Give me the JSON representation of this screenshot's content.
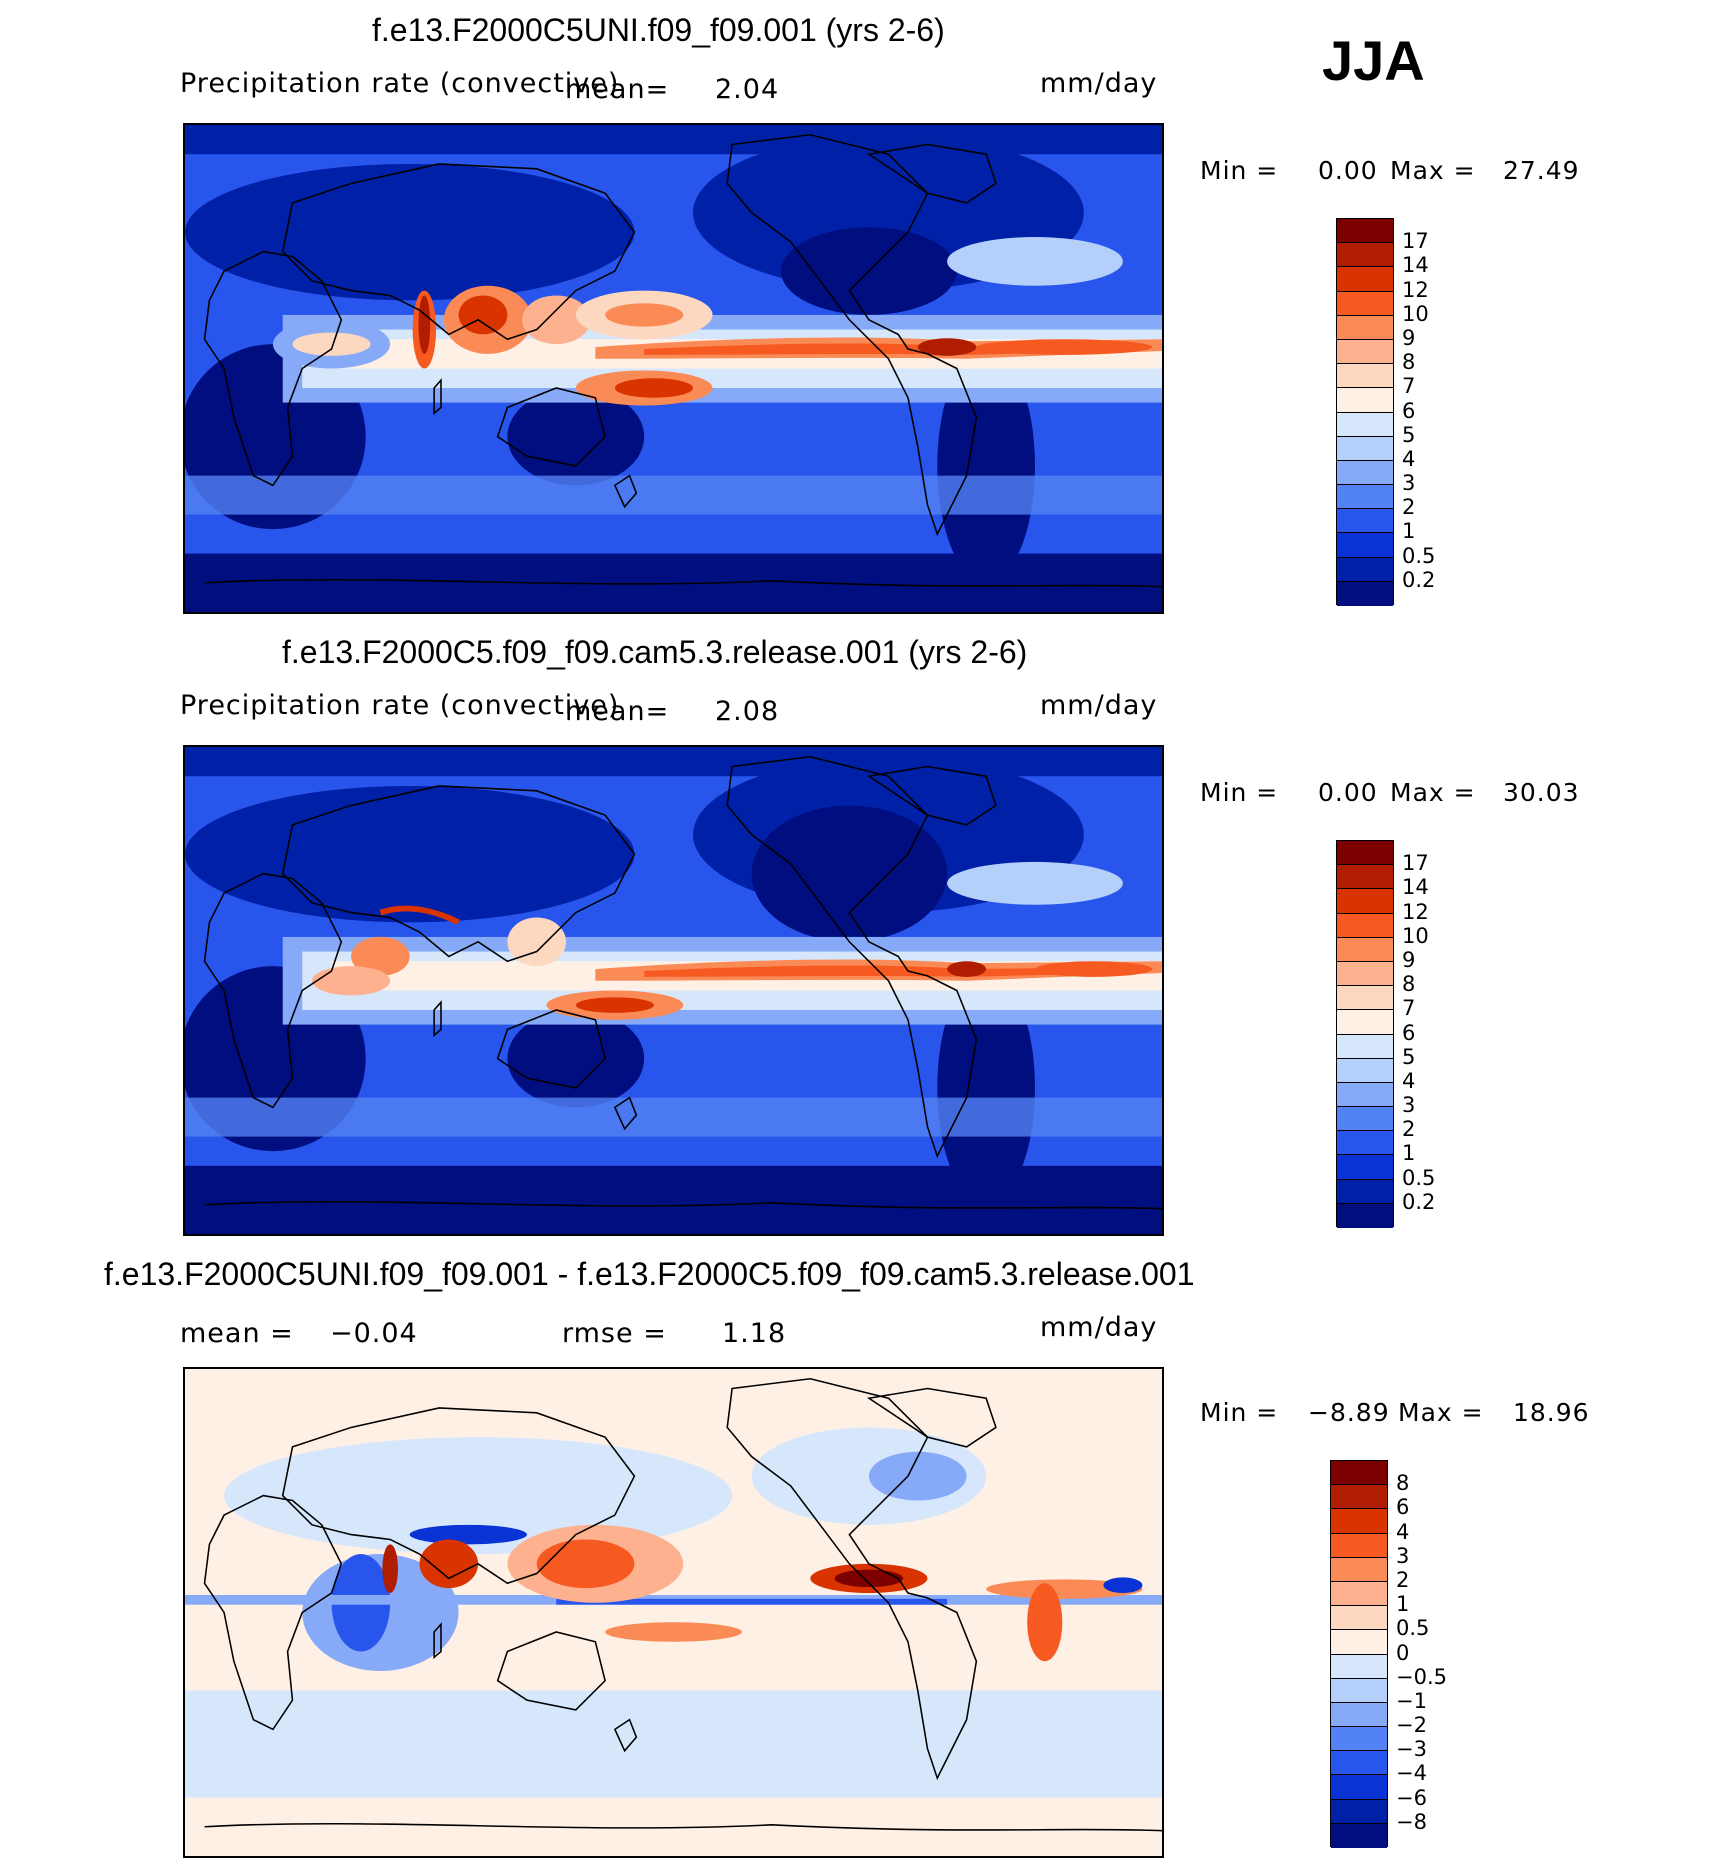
{
  "season": "JJA",
  "panels": [
    {
      "title": "f.e13.F2000C5UNI.f09_f09.001 (yrs 2-6)",
      "variable": "Precipitation rate (convective)",
      "mean_label": "mean=",
      "mean_value": "2.04",
      "units": "mm/day",
      "min_label": "Min =",
      "min_value": "0.00",
      "max_label": "Max =",
      "max_value": "27.49",
      "levels": [
        "17",
        "14",
        "12",
        "10",
        "9",
        "8",
        "7",
        "6",
        "5",
        "4",
        "3",
        "2",
        "1",
        "0.5",
        "0.2"
      ]
    },
    {
      "title": "f.e13.F2000C5.f09_f09.cam5.3.release.001 (yrs 2-6)",
      "variable": "Precipitation rate (convective)",
      "mean_label": "mean=",
      "mean_value": "2.08",
      "units": "mm/day",
      "min_label": "Min =",
      "min_value": "0.00",
      "max_label": "Max =",
      "max_value": "30.03",
      "levels": [
        "17",
        "14",
        "12",
        "10",
        "9",
        "8",
        "7",
        "6",
        "5",
        "4",
        "3",
        "2",
        "1",
        "0.5",
        "0.2"
      ]
    },
    {
      "title": "f.e13.F2000C5UNI.f09_f09.001 - f.e13.F2000C5.f09_f09.cam5.3.release.001",
      "mean_label": "mean =",
      "mean_value": "−0.04",
      "rmse_label": "rmse =",
      "rmse_value": "1.18",
      "units": "mm/day",
      "min_label": "Min =",
      "min_value": "−8.89",
      "max_label": "Max =",
      "max_value": "18.96",
      "levels": [
        "8",
        "6",
        "4",
        "3",
        "2",
        "1",
        "0.5",
        "0",
        "−0.5",
        "−1",
        "−2",
        "−3",
        "−4",
        "−6",
        "−8"
      ]
    }
  ],
  "colors": {
    "abs_scale": [
      "#7d0000",
      "#b01d00",
      "#d93400",
      "#f65a21",
      "#fb8b56",
      "#fdb18e",
      "#fdd8c1",
      "#fff0e6",
      "#d6e7fc",
      "#b5cffb",
      "#86aaf8",
      "#5282f3",
      "#2855ec",
      "#0a33d6",
      "#0020a8",
      "#000e80"
    ],
    "diff_scale": [
      "#7d0000",
      "#b01d00",
      "#d93400",
      "#f65a21",
      "#fb8b56",
      "#fdb18e",
      "#fdd8c1",
      "#fff0e6",
      "#d6e7fc",
      "#b5cffb",
      "#86aaf8",
      "#5282f3",
      "#2855ec",
      "#0a33d6",
      "#0020a8",
      "#000e80"
    ],
    "frame": "#000000"
  }
}
